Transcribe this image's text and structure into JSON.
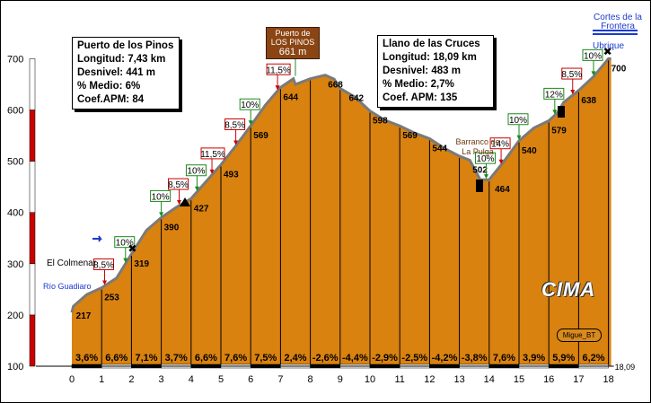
{
  "summit": {
    "line1": "Puerto de",
    "line2": "LOS PINOS",
    "alt": "661 m"
  },
  "box_pinos": {
    "title": "Puerto de los Pinos",
    "rows": [
      "Longitud: 7,43 km",
      "Desnivel: 441 m",
      "% Medio: 6%",
      "Coef.APM: 84"
    ]
  },
  "box_llano": {
    "title": "Llano de las Cruces",
    "rows": [
      "Longitud: 18,09 km",
      "Desnivel: 483 m",
      "% Medio: 2,7%",
      "Coef. APM: 135"
    ]
  },
  "places": {
    "cortes": "Cortes de la Frontera",
    "ubrique": "Ubrique",
    "colmenar": "El Colmenar",
    "rio": "Río Guadiaro",
    "barranco": "Barranco de La Pulga"
  },
  "logo": "CIMA",
  "author": "Migue_BT",
  "colors": {
    "profile": "#d9820f",
    "bar_red": "#cc0000",
    "flag_green": "#1a8a1a",
    "flag_red": "#cc0000",
    "town_blue": "#1a3ad0"
  },
  "chart_data": {
    "type": "area",
    "xlabel": "",
    "ylabel": "",
    "xlim": [
      0,
      18.09
    ],
    "ylim": [
      100,
      700
    ],
    "x_ticks": [
      "0",
      "1",
      "2",
      "3",
      "4",
      "5",
      "6",
      "7",
      "8",
      "9",
      "10",
      "11",
      "12",
      "13",
      "14",
      "15",
      "16",
      "17",
      "18"
    ],
    "y_ticks": [
      "100",
      "200",
      "300",
      "400",
      "500",
      "600",
      "700"
    ],
    "end_label": "18,09",
    "profile": [
      [
        0,
        205
      ],
      [
        0.05,
        217
      ],
      [
        0.5,
        240
      ],
      [
        1,
        253
      ],
      [
        1.5,
        272
      ],
      [
        2,
        319
      ],
      [
        2.5,
        365
      ],
      [
        3,
        390
      ],
      [
        3.5,
        410
      ],
      [
        4,
        427
      ],
      [
        4.5,
        460
      ],
      [
        5,
        493
      ],
      [
        5.5,
        530
      ],
      [
        6,
        569
      ],
      [
        6.5,
        610
      ],
      [
        7,
        644
      ],
      [
        7.5,
        650
      ],
      [
        7.43,
        661
      ],
      [
        8,
        661
      ],
      [
        8.5,
        668
      ],
      [
        8.8,
        660
      ],
      [
        9,
        642
      ],
      [
        9.5,
        625
      ],
      [
        10,
        598
      ],
      [
        10.5,
        580
      ],
      [
        11,
        569
      ],
      [
        11.5,
        555
      ],
      [
        12,
        544
      ],
      [
        12.5,
        525
      ],
      [
        13,
        510
      ],
      [
        13.35,
        502
      ],
      [
        13.7,
        464
      ],
      [
        14,
        464
      ],
      [
        14.5,
        500
      ],
      [
        15,
        540
      ],
      [
        15.5,
        565
      ],
      [
        16,
        579
      ],
      [
        16.3,
        595
      ],
      [
        16.5,
        615
      ],
      [
        17,
        638
      ],
      [
        17.5,
        665
      ],
      [
        18,
        700
      ],
      [
        18.09,
        700
      ]
    ],
    "point_labels": [
      {
        "x": 0.05,
        "y": 217,
        "text": "217"
      },
      {
        "x": 1,
        "y": 253,
        "text": "253"
      },
      {
        "x": 2,
        "y": 319,
        "text": "319"
      },
      {
        "x": 3,
        "y": 390,
        "text": "390"
      },
      {
        "x": 4,
        "y": 427,
        "text": "427"
      },
      {
        "x": 5,
        "y": 493,
        "text": "493"
      },
      {
        "x": 6,
        "y": 569,
        "text": "569"
      },
      {
        "x": 7,
        "y": 644,
        "text": "644"
      },
      {
        "x": 8.5,
        "y": 668,
        "text": "668"
      },
      {
        "x": 9.2,
        "y": 642,
        "text": "642"
      },
      {
        "x": 10,
        "y": 598,
        "text": "598"
      },
      {
        "x": 11,
        "y": 569,
        "text": "569"
      },
      {
        "x": 12,
        "y": 544,
        "text": "544"
      },
      {
        "x": 13.35,
        "y": 502,
        "text": "502"
      },
      {
        "x": 14.1,
        "y": 464,
        "text": "464"
      },
      {
        "x": 15,
        "y": 540,
        "text": "540"
      },
      {
        "x": 16,
        "y": 579,
        "text": "579"
      },
      {
        "x": 17,
        "y": 638,
        "text": "638"
      },
      {
        "x": 18,
        "y": 700,
        "text": "700"
      }
    ],
    "segment_grades": [
      "3,6%",
      "6,6%",
      "7,1%",
      "3,7%",
      "6,6%",
      "7,6%",
      "7,5%",
      "2,4%",
      "-2,6%",
      "-4,4%",
      "-2,9%",
      "-2,5%",
      "-4,2%",
      "-3,8%",
      "7,6%",
      "3,9%",
      "5,9%",
      "6,2%"
    ],
    "grade_flags": [
      {
        "x": 1.1,
        "text": "8,5%",
        "color": "red"
      },
      {
        "x": 1.8,
        "text": "10%",
        "color": "green"
      },
      {
        "x": 3,
        "text": "10%",
        "color": "green"
      },
      {
        "x": 3.6,
        "text": "8,5%",
        "color": "red"
      },
      {
        "x": 4.2,
        "text": "10%",
        "color": "green"
      },
      {
        "x": 4.7,
        "text": "11,5%",
        "color": "red"
      },
      {
        "x": 5.5,
        "text": "8,5%",
        "color": "red"
      },
      {
        "x": 6,
        "text": "10%",
        "color": "green"
      },
      {
        "x": 6.9,
        "text": "11,5%",
        "color": "red"
      },
      {
        "x": 13.9,
        "text": "10%",
        "color": "green"
      },
      {
        "x": 14.4,
        "text": "14%",
        "color": "red"
      },
      {
        "x": 15,
        "text": "10%",
        "color": "green"
      },
      {
        "x": 16.2,
        "text": "12%",
        "color": "green"
      },
      {
        "x": 16.8,
        "text": "8,5%",
        "color": "red"
      },
      {
        "x": 17.5,
        "text": "10%",
        "color": "green"
      }
    ]
  }
}
